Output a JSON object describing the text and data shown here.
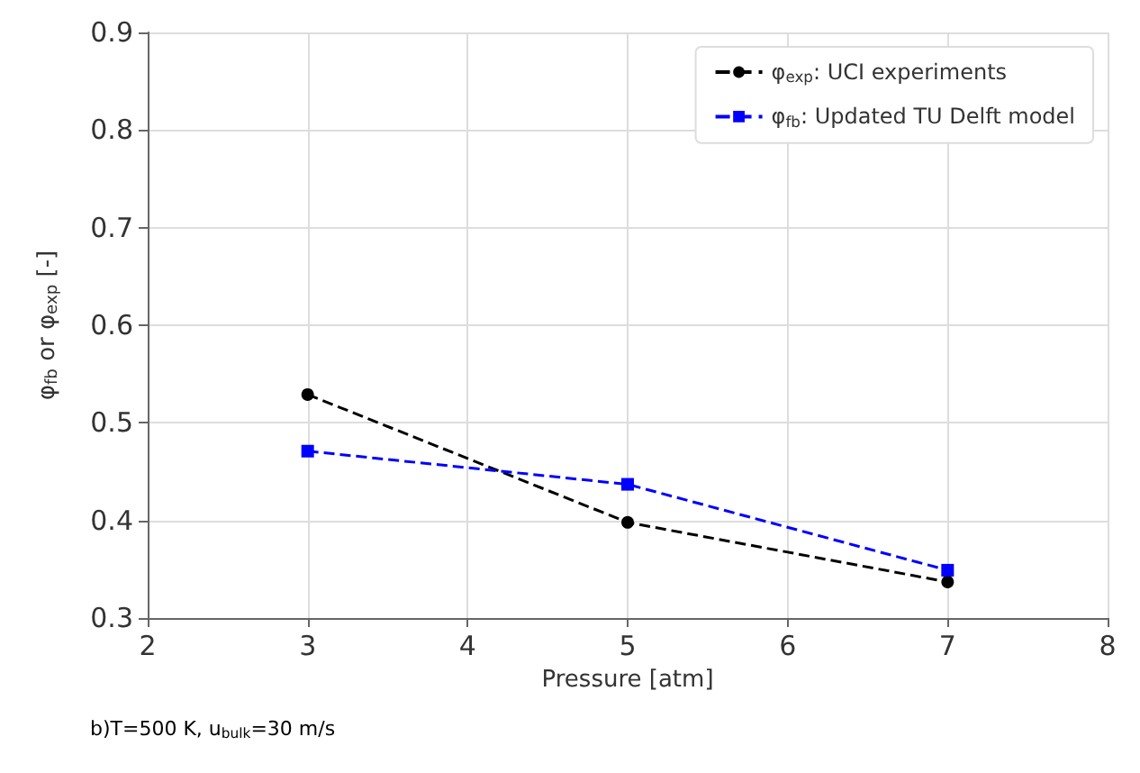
{
  "chart_data": {
    "type": "line",
    "xlabel": "Pressure [atm]",
    "ylabel": "φ$_{fb}$ or φ$_{exp}$ [-]",
    "x": [
      3,
      5,
      7
    ],
    "series": [
      {
        "name": "φ$_{exp}$: UCI experiments",
        "color": "#000000",
        "values": [
          0.529,
          0.398,
          0.337
        ],
        "marker": "circle"
      },
      {
        "name": "φ$_{fb}$: Updated TU Delft model",
        "color": "#0000ff",
        "values": [
          0.471,
          0.437,
          0.349
        ],
        "marker": "square"
      }
    ],
    "xlim": [
      2,
      8
    ],
    "xticks": [
      2,
      3,
      4,
      5,
      6,
      7,
      8
    ],
    "ylim": [
      0.3,
      0.9
    ],
    "yticks": [
      0.3,
      0.4,
      0.5,
      0.6,
      0.7,
      0.8,
      0.9
    ],
    "grid": true,
    "legend": "top right",
    "line_style": "dashed",
    "annotations": [
      "b)T=500 K, u$_{bulk}$=30 m/s"
    ]
  }
}
